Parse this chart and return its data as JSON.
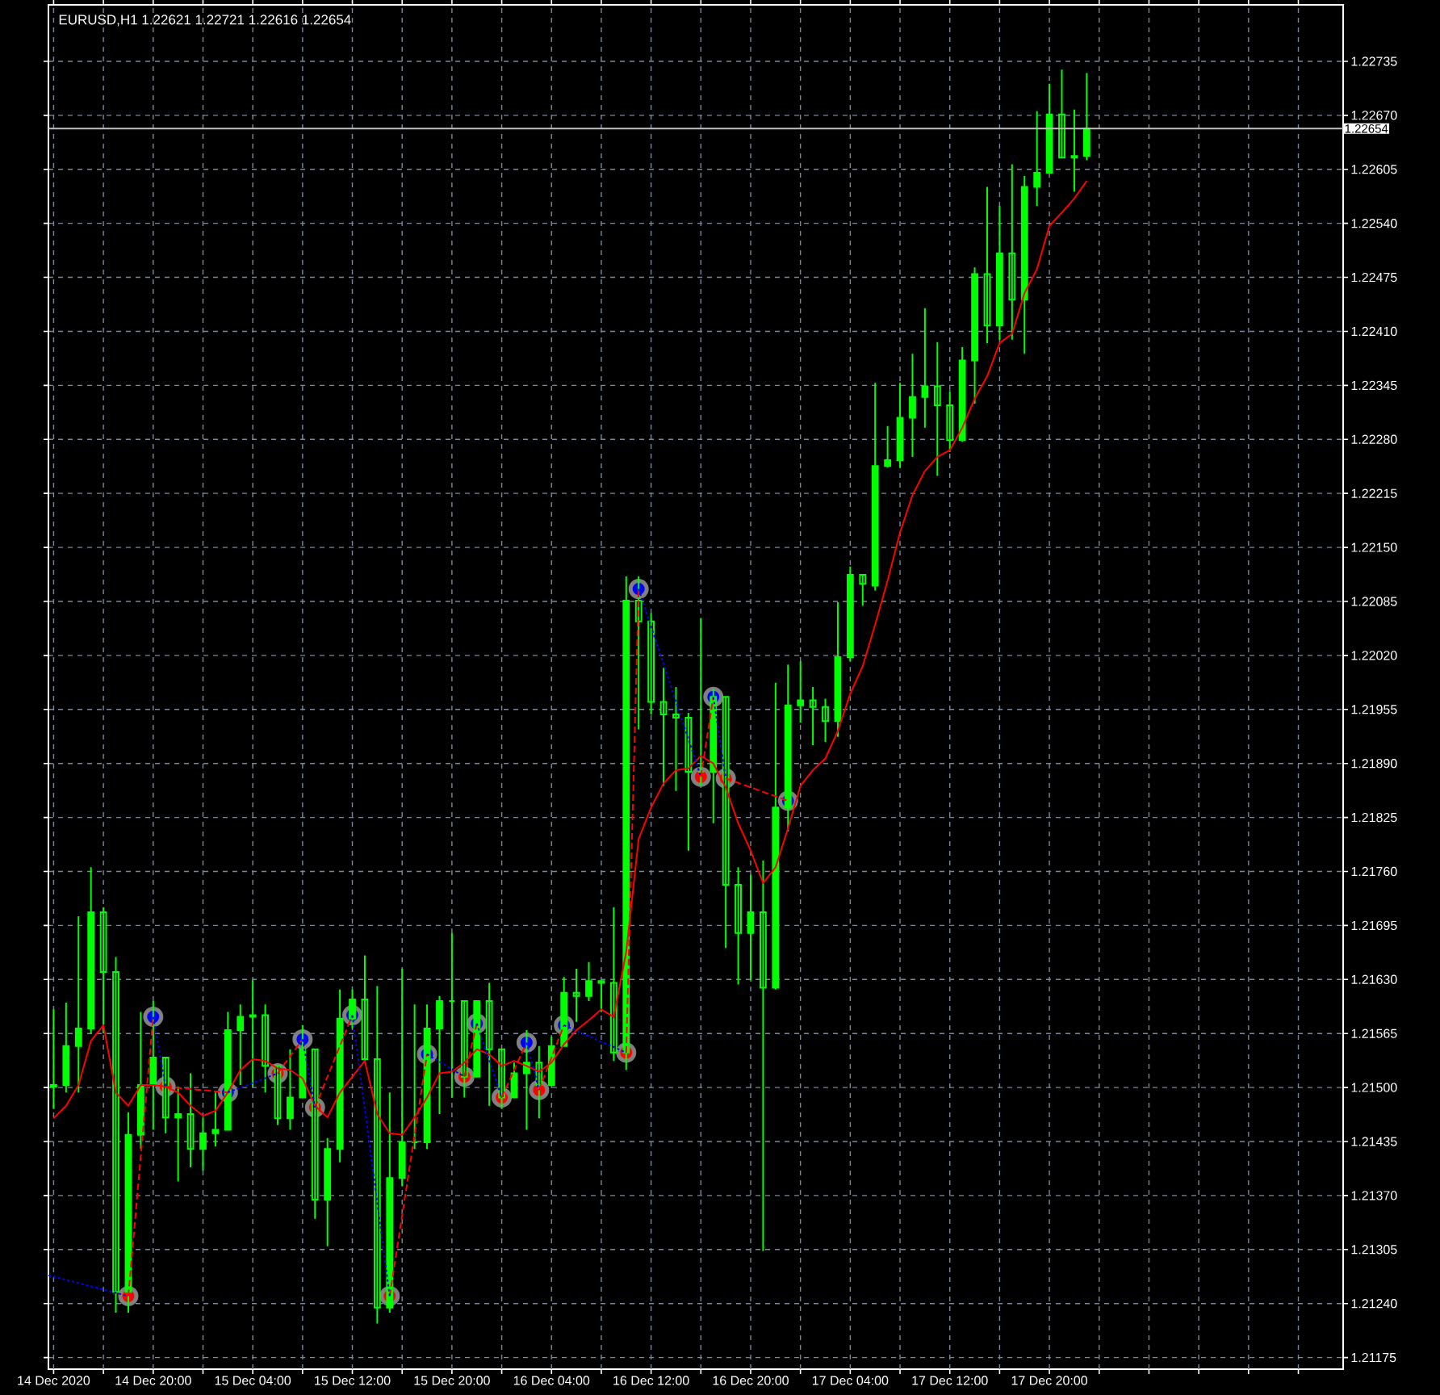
{
  "chart_data": {
    "type": "candlestick",
    "title": "EURUSD,H1  1.22621 1.22721 1.22616 1.22654",
    "color": "#00ff00",
    "grid": true,
    "x": [
      "2020-12-14T12:00",
      "2020-12-14T13:00",
      "2020-12-14T14:00",
      "2020-12-14T15:00",
      "2020-12-14T16:00",
      "2020-12-14T17:00",
      "2020-12-14T18:00",
      "2020-12-14T19:00",
      "2020-12-14T20:00",
      "2020-12-14T21:00",
      "2020-12-14T22:00",
      "2020-12-14T23:00",
      "2020-12-15T00:00",
      "2020-12-15T01:00",
      "2020-12-15T02:00",
      "2020-12-15T03:00",
      "2020-12-15T04:00",
      "2020-12-15T05:00",
      "2020-12-15T06:00",
      "2020-12-15T07:00",
      "2020-12-15T08:00",
      "2020-12-15T09:00",
      "2020-12-15T10:00",
      "2020-12-15T11:00",
      "2020-12-15T12:00",
      "2020-12-15T13:00",
      "2020-12-15T14:00",
      "2020-12-15T15:00",
      "2020-12-15T16:00",
      "2020-12-15T17:00",
      "2020-12-15T18:00",
      "2020-12-15T19:00",
      "2020-12-15T20:00",
      "2020-12-15T21:00",
      "2020-12-15T22:00",
      "2020-12-15T23:00",
      "2020-12-16T00:00",
      "2020-12-16T01:00",
      "2020-12-16T02:00",
      "2020-12-16T03:00",
      "2020-12-16T04:00",
      "2020-12-16T05:00",
      "2020-12-16T06:00",
      "2020-12-16T07:00",
      "2020-12-16T08:00",
      "2020-12-16T09:00",
      "2020-12-16T10:00",
      "2020-12-16T11:00",
      "2020-12-16T12:00",
      "2020-12-16T13:00",
      "2020-12-16T14:00",
      "2020-12-16T15:00",
      "2020-12-16T16:00",
      "2020-12-16T17:00",
      "2020-12-16T18:00",
      "2020-12-16T19:00",
      "2020-12-16T20:00",
      "2020-12-16T21:00",
      "2020-12-16T22:00",
      "2020-12-16T23:00",
      "2020-12-17T00:00",
      "2020-12-17T01:00",
      "2020-12-17T02:00",
      "2020-12-17T03:00",
      "2020-12-17T04:00",
      "2020-12-17T05:00",
      "2020-12-17T06:00",
      "2020-12-17T07:00",
      "2020-12-17T08:00",
      "2020-12-17T09:00",
      "2020-12-17T10:00",
      "2020-12-17T11:00",
      "2020-12-17T12:00",
      "2020-12-17T13:00",
      "2020-12-17T14:00",
      "2020-12-17T15:00",
      "2020-12-17T16:00",
      "2020-12-17T17:00",
      "2020-12-17T18:00",
      "2020-12-17T19:00",
      "2020-12-17T20:00",
      "2020-12-17T21:00",
      "2020-12-17T22:00",
      "2020-12-17T23:00"
    ],
    "ohlc": [
      [
        1.21503,
        1.21594,
        1.21474,
        1.21501
      ],
      [
        1.21503,
        1.21602,
        1.21494,
        1.2155
      ],
      [
        1.2155,
        1.21706,
        1.21494,
        1.21571
      ],
      [
        1.21571,
        1.21765,
        1.21565,
        1.21711
      ],
      [
        1.21711,
        1.21717,
        1.21565,
        1.21639
      ],
      [
        1.21639,
        1.21657,
        1.21229,
        1.21254
      ],
      [
        1.21254,
        1.2147,
        1.21229,
        1.21443
      ],
      [
        1.21443,
        1.21591,
        1.21426,
        1.21503
      ],
      [
        1.21503,
        1.21604,
        1.21449,
        1.21536
      ],
      [
        1.21536,
        1.21536,
        1.21445,
        1.21464
      ],
      [
        1.21464,
        1.21501,
        1.21387,
        1.21468
      ],
      [
        1.21468,
        1.21517,
        1.21404,
        1.21426
      ],
      [
        1.21426,
        1.21464,
        1.214,
        1.21445
      ],
      [
        1.21445,
        1.21494,
        1.21429,
        1.21449
      ],
      [
        1.21449,
        1.21591,
        1.21449,
        1.21569
      ],
      [
        1.21569,
        1.216,
        1.21503,
        1.21585
      ],
      [
        1.21585,
        1.21629,
        1.21501,
        1.21587
      ],
      [
        1.21587,
        1.216,
        1.21494,
        1.21526
      ],
      [
        1.21526,
        1.21526,
        1.21455,
        1.21463
      ],
      [
        1.21463,
        1.21546,
        1.21449,
        1.21488
      ],
      [
        1.21488,
        1.21575,
        1.21488,
        1.21546
      ],
      [
        1.21546,
        1.21546,
        1.21342,
        1.21365
      ],
      [
        1.21365,
        1.21439,
        1.21309,
        1.21426
      ],
      [
        1.21426,
        1.21618,
        1.2141,
        1.21583
      ],
      [
        1.21583,
        1.21618,
        1.21571,
        1.21606
      ],
      [
        1.21606,
        1.21659,
        1.21532,
        1.21534
      ],
      [
        1.21534,
        1.21622,
        1.21216,
        1.21235
      ],
      [
        1.21235,
        1.21494,
        1.21229,
        1.21391
      ],
      [
        1.21391,
        1.21643,
        1.21381,
        1.21434
      ],
      [
        1.21434,
        1.216,
        1.21426,
        1.21434
      ],
      [
        1.21434,
        1.216,
        1.21426,
        1.21571
      ],
      [
        1.21571,
        1.2161,
        1.21468,
        1.21604
      ],
      [
        1.21604,
        1.21686,
        1.21488,
        1.21604
      ],
      [
        1.21604,
        1.21604,
        1.21488,
        1.21513
      ],
      [
        1.21513,
        1.21604,
        1.21513,
        1.21604
      ],
      [
        1.21604,
        1.21626,
        1.21478,
        1.21546
      ],
      [
        1.21546,
        1.21546,
        1.21474,
        1.21488
      ],
      [
        1.21488,
        1.2153,
        1.21488,
        1.21517
      ],
      [
        1.21517,
        1.21569,
        1.21449,
        1.2153
      ],
      [
        1.2153,
        1.2155,
        1.21463,
        1.21503
      ],
      [
        1.21503,
        1.21561,
        1.21503,
        1.2155
      ],
      [
        1.2155,
        1.21633,
        1.2155,
        1.21614
      ],
      [
        1.21614,
        1.21643,
        1.21579,
        1.2161
      ],
      [
        1.2161,
        1.21651,
        1.21604,
        1.21628
      ],
      [
        1.21628,
        1.21628,
        1.21591,
        1.21626
      ],
      [
        1.21626,
        1.21717,
        1.21532,
        1.21542
      ],
      [
        1.21542,
        1.22115,
        1.21521,
        1.22086
      ],
      [
        1.22086,
        1.22115,
        1.21931,
        1.22061
      ],
      [
        1.22061,
        1.22071,
        1.21949,
        1.21964
      ],
      [
        1.21964,
        1.22005,
        1.21863,
        1.21949
      ],
      [
        1.21949,
        1.21982,
        1.21857,
        1.21945
      ],
      [
        1.21945,
        1.21951,
        1.21785,
        1.2188
      ],
      [
        1.2188,
        1.22065,
        1.21863,
        1.2188
      ],
      [
        1.2188,
        1.2198,
        1.21818,
        1.2197
      ],
      [
        1.2197,
        1.2197,
        1.21668,
        1.21744
      ],
      [
        1.21744,
        1.21765,
        1.21624,
        1.21686
      ],
      [
        1.21686,
        1.21756,
        1.21629,
        1.21711
      ],
      [
        1.21711,
        1.21773,
        1.21303,
        1.2162
      ],
      [
        1.2162,
        1.21987,
        1.21618,
        1.21837
      ],
      [
        1.21837,
        1.22009,
        1.21808,
        1.2196
      ],
      [
        1.2196,
        1.22013,
        1.21939,
        1.21966
      ],
      [
        1.21966,
        1.21982,
        1.21912,
        1.21958
      ],
      [
        1.21958,
        1.21968,
        1.21916,
        1.21941
      ],
      [
        1.21941,
        1.22084,
        1.21922,
        1.22018
      ],
      [
        1.22018,
        1.22127,
        1.22013,
        1.22117
      ],
      [
        1.22117,
        1.22117,
        1.2208,
        1.22106
      ],
      [
        1.22104,
        1.22348,
        1.22098,
        1.22248
      ],
      [
        1.22248,
        1.22296,
        1.22246,
        1.22255
      ],
      [
        1.22255,
        1.22348,
        1.22246,
        1.22306
      ],
      [
        1.22306,
        1.22383,
        1.22259,
        1.22331
      ],
      [
        1.22331,
        1.22438,
        1.22294,
        1.22344
      ],
      [
        1.22344,
        1.22397,
        1.22236,
        1.22321
      ],
      [
        1.22321,
        1.22338,
        1.22265,
        1.22279
      ],
      [
        1.22279,
        1.22391,
        1.22277,
        1.22375
      ],
      [
        1.22375,
        1.22487,
        1.22323,
        1.22479
      ],
      [
        1.22479,
        1.22584,
        1.22396,
        1.22417
      ],
      [
        1.22417,
        1.22561,
        1.224,
        1.22504
      ],
      [
        1.22504,
        1.22611,
        1.224,
        1.22448
      ],
      [
        1.22448,
        1.22597,
        1.22383,
        1.22584
      ],
      [
        1.22584,
        1.22675,
        1.22561,
        1.22601
      ],
      [
        1.22601,
        1.22708,
        1.22601,
        1.22671
      ],
      [
        1.22671,
        1.22725,
        1.22619,
        1.22619
      ],
      [
        1.22619,
        1.22677,
        1.22578,
        1.22621
      ],
      [
        1.22621,
        1.22721,
        1.22616,
        1.22654
      ]
    ],
    "series": [
      {
        "type": "line",
        "color": "#ff0000",
        "line_style": "solid",
        "values": [
          1.21463,
          1.21478,
          1.21503,
          1.21556,
          1.21575,
          1.21494,
          1.21478,
          1.21503,
          1.21503,
          1.21501,
          1.21494,
          1.21478,
          1.21466,
          1.21472,
          1.21494,
          1.21521,
          1.21534,
          1.21532,
          1.21523,
          1.21521,
          1.21511,
          1.21478,
          1.21464,
          1.21494,
          1.21513,
          1.21532,
          1.21468,
          1.21445,
          1.21443,
          1.21464,
          1.21488,
          1.21517,
          1.21519,
          1.2153,
          1.21546,
          1.2154,
          1.21526,
          1.21532,
          1.21526,
          1.21519,
          1.2153,
          1.21552,
          1.21569,
          1.21581,
          1.21594,
          1.21585,
          1.21663,
          1.21799,
          1.21837,
          1.21866,
          1.21882,
          1.21884,
          1.21899,
          1.2189,
          1.21861,
          1.21818,
          1.21785,
          1.21746,
          1.21765,
          1.21812,
          1.21863,
          1.21882,
          1.21896,
          1.21929,
          1.21974,
          1.22007,
          1.22057,
          1.2211,
          1.22168,
          1.22213,
          1.22242,
          1.22259,
          1.22267,
          1.22294,
          1.22329,
          1.22356,
          1.22396,
          1.22407,
          1.22456,
          1.22485,
          1.22537,
          1.22553,
          1.2257,
          1.22591
        ]
      },
      {
        "type": "line",
        "color": "#ff0000",
        "line_style": "dashed",
        "x": [
          "2020-12-14T18:00",
          "2020-12-14T20:00"
        ],
        "values": [
          1.21249,
          1.21585
        ]
      },
      {
        "type": "line",
        "color": "#ff0000",
        "line_style": "dashed",
        "x": [
          "2020-12-14T21:00",
          "2020-12-15T02:00"
        ],
        "values": [
          1.21501,
          1.21494
        ]
      },
      {
        "type": "line",
        "color": "#ff0000",
        "line_style": "dashed",
        "x": [
          "2020-12-15T06:00",
          "2020-12-15T08:00"
        ],
        "values": [
          1.21517,
          1.21558
        ]
      },
      {
        "type": "line",
        "color": "#ff0000",
        "line_style": "dashed",
        "x": [
          "2020-12-15T09:00",
          "2020-12-15T12:00"
        ],
        "values": [
          1.21476,
          1.21587
        ]
      },
      {
        "type": "line",
        "color": "#ff0000",
        "line_style": "dashed",
        "x": [
          "2020-12-15T15:00",
          "2020-12-15T18:00"
        ],
        "values": [
          1.21249,
          1.2154
        ]
      },
      {
        "type": "line",
        "color": "#ff0000",
        "line_style": "dashed",
        "x": [
          "2020-12-15T21:00",
          "2020-12-15T22:00"
        ],
        "values": [
          1.21513,
          1.21577
        ]
      },
      {
        "type": "line",
        "color": "#ff0000",
        "line_style": "dashed",
        "x": [
          "2020-12-16T00:00",
          "2020-12-16T02:00"
        ],
        "values": [
          1.21488,
          1.21554
        ]
      },
      {
        "type": "line",
        "color": "#ff0000",
        "line_style": "dashed",
        "x": [
          "2020-12-16T03:00",
          "2020-12-16T05:00"
        ],
        "values": [
          1.21497,
          1.21575
        ]
      },
      {
        "type": "line",
        "color": "#ff0000",
        "line_style": "dashed",
        "x": [
          "2020-12-16T10:00",
          "2020-12-16T11:00"
        ],
        "values": [
          1.21542,
          1.221
        ]
      },
      {
        "type": "line",
        "color": "#ff0000",
        "line_style": "dashed",
        "x": [
          "2020-12-16T16:00",
          "2020-12-16T17:00"
        ],
        "values": [
          1.21874,
          1.2197
        ]
      },
      {
        "type": "line",
        "color": "#ff0000",
        "line_style": "dashed",
        "x": [
          "2020-12-16T18:00",
          "2020-12-16T23:00"
        ],
        "values": [
          1.21872,
          1.21845
        ]
      },
      {
        "type": "line",
        "color": "#0000ff",
        "line_style": "dotted",
        "x": [
          "2020-12-14T11:35",
          "2020-12-14T18:00"
        ],
        "values": [
          1.21274,
          1.21249
        ]
      },
      {
        "type": "line",
        "color": "#0000ff",
        "line_style": "dotted",
        "x": [
          "2020-12-14T20:00",
          "2020-12-14T21:00"
        ],
        "values": [
          1.21585,
          1.21501
        ]
      },
      {
        "type": "line",
        "color": "#0000ff",
        "line_style": "dotted",
        "x": [
          "2020-12-15T02:00",
          "2020-12-15T06:00"
        ],
        "values": [
          1.21494,
          1.21517
        ]
      },
      {
        "type": "line",
        "color": "#0000ff",
        "line_style": "dotted",
        "x": [
          "2020-12-15T08:00",
          "2020-12-15T09:00"
        ],
        "values": [
          1.21558,
          1.21476
        ]
      },
      {
        "type": "line",
        "color": "#0000ff",
        "line_style": "dotted",
        "x": [
          "2020-12-15T12:00",
          "2020-12-15T15:00"
        ],
        "values": [
          1.21587,
          1.21249
        ]
      },
      {
        "type": "line",
        "color": "#0000ff",
        "line_style": "dotted",
        "x": [
          "2020-12-15T18:00",
          "2020-12-15T21:00"
        ],
        "values": [
          1.2154,
          1.21513
        ]
      },
      {
        "type": "line",
        "color": "#0000ff",
        "line_style": "dotted",
        "x": [
          "2020-12-15T22:00",
          "2020-12-16T00:00"
        ],
        "values": [
          1.21577,
          1.21488
        ]
      },
      {
        "type": "line",
        "color": "#0000ff",
        "line_style": "dotted",
        "x": [
          "2020-12-16T02:00",
          "2020-12-16T03:00"
        ],
        "values": [
          1.21554,
          1.21497
        ]
      },
      {
        "type": "line",
        "color": "#0000ff",
        "line_style": "dotted",
        "x": [
          "2020-12-16T05:00",
          "2020-12-16T10:00"
        ],
        "values": [
          1.21575,
          1.21542
        ]
      },
      {
        "type": "line",
        "color": "#0000ff",
        "line_style": "dotted",
        "x": [
          "2020-12-16T11:00",
          "2020-12-16T16:00"
        ],
        "values": [
          1.221,
          1.21874
        ]
      },
      {
        "type": "line",
        "color": "#0000ff",
        "line_style": "dotted",
        "x": [
          "2020-12-16T17:00",
          "2020-12-16T18:00"
        ],
        "values": [
          1.2197,
          1.21872
        ]
      },
      {
        "type": "scatter",
        "color": "#ff0000",
        "marker": "circle",
        "x": [
          "2020-12-14T18:00",
          "2020-12-14T21:00",
          "2020-12-15T06:00",
          "2020-12-15T09:00",
          "2020-12-15T15:00",
          "2020-12-15T21:00",
          "2020-12-16T00:00",
          "2020-12-16T03:00",
          "2020-12-16T10:00",
          "2020-12-16T16:00",
          "2020-12-16T18:00"
        ],
        "values": [
          1.21249,
          1.21501,
          1.21517,
          1.21476,
          1.21249,
          1.21513,
          1.21488,
          1.21497,
          1.21542,
          1.21874,
          1.21872
        ]
      },
      {
        "type": "scatter",
        "color": "#0000ff",
        "marker": "circle",
        "x": [
          "2020-12-14T20:00",
          "2020-12-15T02:00",
          "2020-12-15T08:00",
          "2020-12-15T12:00",
          "2020-12-15T18:00",
          "2020-12-15T22:00",
          "2020-12-16T02:00",
          "2020-12-16T05:00",
          "2020-12-16T11:00",
          "2020-12-16T17:00",
          "2020-12-16T23:00"
        ],
        "values": [
          1.21585,
          1.21494,
          1.21558,
          1.21587,
          1.2154,
          1.21577,
          1.21554,
          1.21575,
          1.221,
          1.2197,
          1.21845
        ]
      }
    ],
    "xlim": [
      "2020-12-14T11:35",
      "2020-12-18T19:36"
    ],
    "xticks": [
      {
        "value": "2020-12-14T12:00",
        "label": "14 Dec 2020"
      },
      {
        "value": "2020-12-14T16:00",
        "label": null
      },
      {
        "value": "2020-12-14T20:00",
        "label": "14 Dec 20:00"
      },
      {
        "value": "2020-12-15T00:00",
        "label": null
      },
      {
        "value": "2020-12-15T04:00",
        "label": "15 Dec 04:00"
      },
      {
        "value": "2020-12-15T08:00",
        "label": null
      },
      {
        "value": "2020-12-15T12:00",
        "label": "15 Dec 12:00"
      },
      {
        "value": "2020-12-15T16:00",
        "label": null
      },
      {
        "value": "2020-12-15T20:00",
        "label": "15 Dec 20:00"
      },
      {
        "value": "2020-12-16T00:00",
        "label": null
      },
      {
        "value": "2020-12-16T04:00",
        "label": "16 Dec 04:00"
      },
      {
        "value": "2020-12-16T08:00",
        "label": null
      },
      {
        "value": "2020-12-16T12:00",
        "label": "16 Dec 12:00"
      },
      {
        "value": "2020-12-16T16:00",
        "label": null
      },
      {
        "value": "2020-12-16T20:00",
        "label": "16 Dec 20:00"
      },
      {
        "value": "2020-12-17T00:00",
        "label": null
      },
      {
        "value": "2020-12-17T04:00",
        "label": "17 Dec 04:00"
      },
      {
        "value": "2020-12-17T08:00",
        "label": null
      },
      {
        "value": "2020-12-17T12:00",
        "label": "17 Dec 12:00"
      },
      {
        "value": "2020-12-17T16:00",
        "label": null
      },
      {
        "value": "2020-12-17T20:00",
        "label": "17 Dec 20:00"
      },
      {
        "value": "2020-12-18T00:00",
        "label": null
      },
      {
        "value": "2020-12-18T04:00",
        "label": null
      },
      {
        "value": "2020-12-18T08:00",
        "label": null
      },
      {
        "value": "2020-12-18T12:00",
        "label": null
      },
      {
        "value": "2020-12-18T16:00",
        "label": null
      }
    ],
    "ylim": [
      1.21161,
      1.22803
    ],
    "yticks": [
      1.21175,
      {
        "value": 1.2124,
        "label": "1.21240"
      },
      1.21305,
      {
        "value": 1.2137,
        "label": "1.21370"
      },
      1.21435,
      {
        "value": 1.215,
        "label": "1.21500"
      },
      1.21565,
      {
        "value": 1.2163,
        "label": "1.21630"
      },
      1.21695,
      {
        "value": 1.2176,
        "label": "1.21760"
      },
      1.21825,
      {
        "value": 1.2189,
        "label": "1.21890"
      },
      1.21955,
      {
        "value": 1.2202,
        "label": "1.22020"
      },
      1.22085,
      {
        "value": 1.2215,
        "label": "1.22150"
      },
      1.22215,
      {
        "value": 1.2228,
        "label": "1.22280"
      },
      1.22345,
      {
        "value": 1.2241,
        "label": "1.22410"
      },
      1.22475,
      {
        "value": 1.2254,
        "label": "1.22540"
      },
      1.22605,
      {
        "value": 1.2267,
        "label": "1.22670"
      },
      1.22735
    ],
    "ref_lines": [
      {
        "axis": "y",
        "value": 1.22654,
        "label": "1.22654",
        "color": "#c0c0c0"
      }
    ]
  }
}
